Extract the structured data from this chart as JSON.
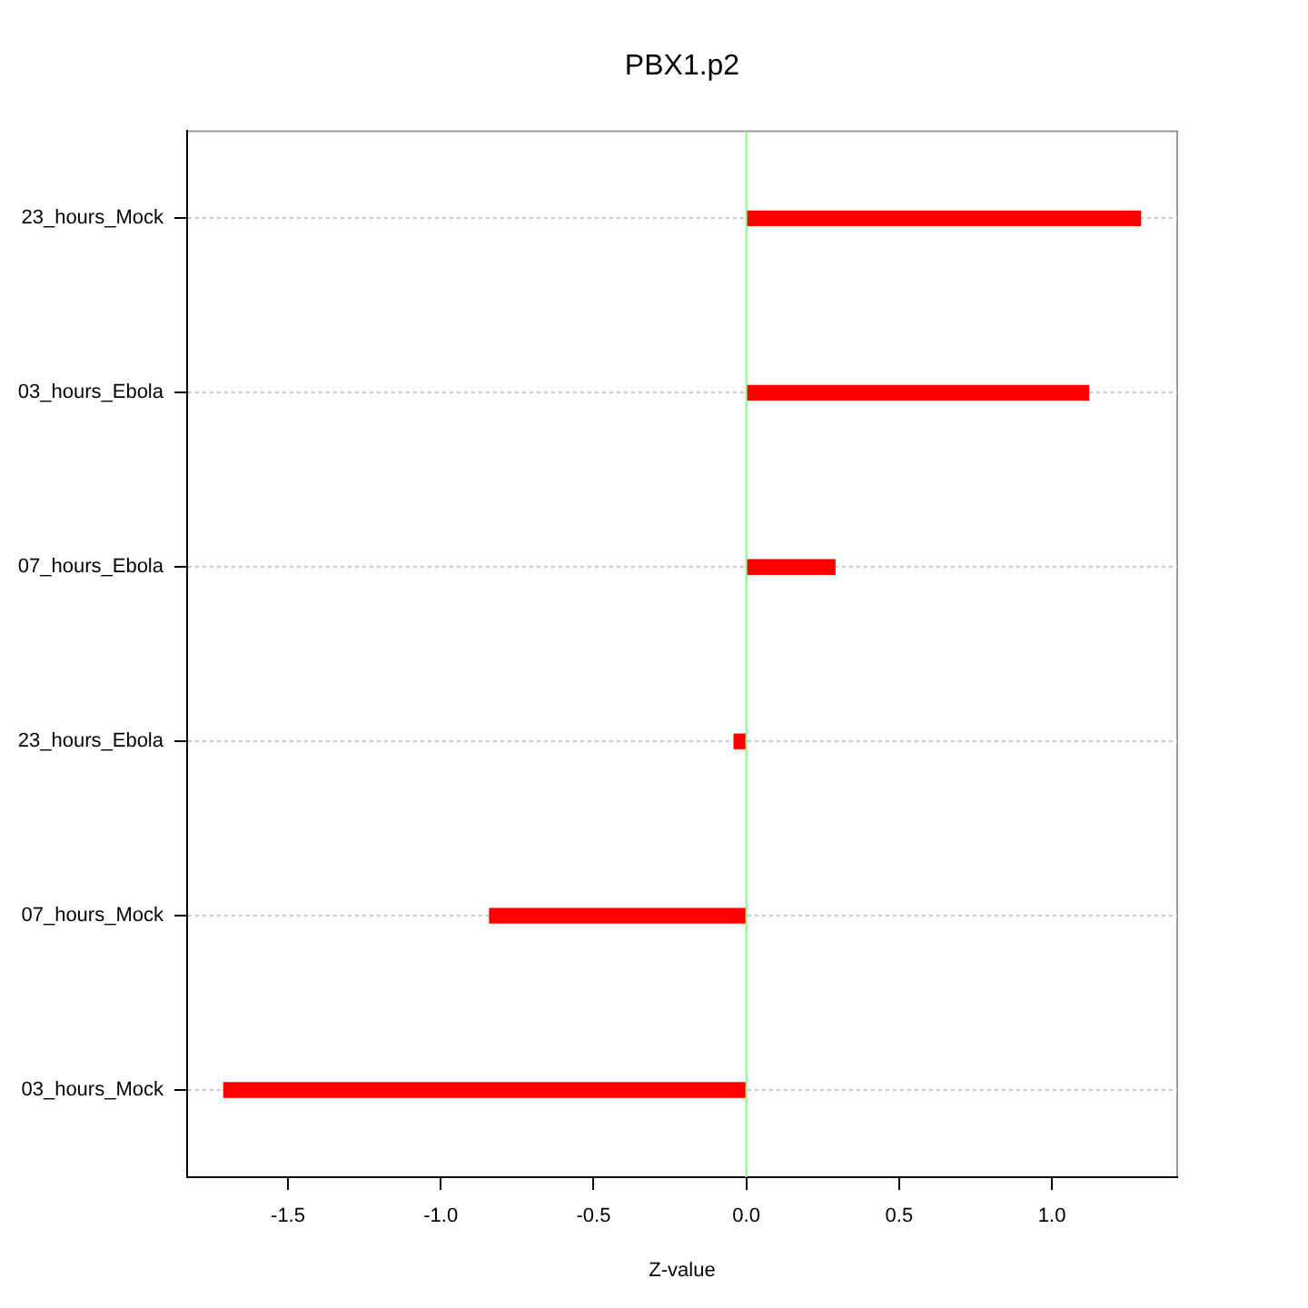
{
  "chart_data": {
    "type": "bar",
    "orientation": "horizontal",
    "title": "PBX1.p2",
    "xlabel": "Z-value",
    "categories": [
      "23_hours_Mock",
      "03_hours_Ebola",
      "07_hours_Ebola",
      "23_hours_Ebola",
      "07_hours_Mock",
      "03_hours_Mock"
    ],
    "values": [
      1.29,
      1.12,
      0.29,
      -0.04,
      -0.84,
      -1.71
    ],
    "color": "#ff0000",
    "xlim": [
      -1.83,
      1.41
    ],
    "xticks": [
      -1.5,
      {
        "value": -1,
        "label": "-1.0"
      },
      -0.5,
      {
        "value": 0,
        "label": "0.0"
      },
      0.5,
      {
        "value": 1,
        "label": "1.0"
      }
    ],
    "grid": "y",
    "legend": false,
    "ref_lines": [
      {
        "axis": "x",
        "value": 0,
        "color": "#80ff80"
      }
    ]
  }
}
